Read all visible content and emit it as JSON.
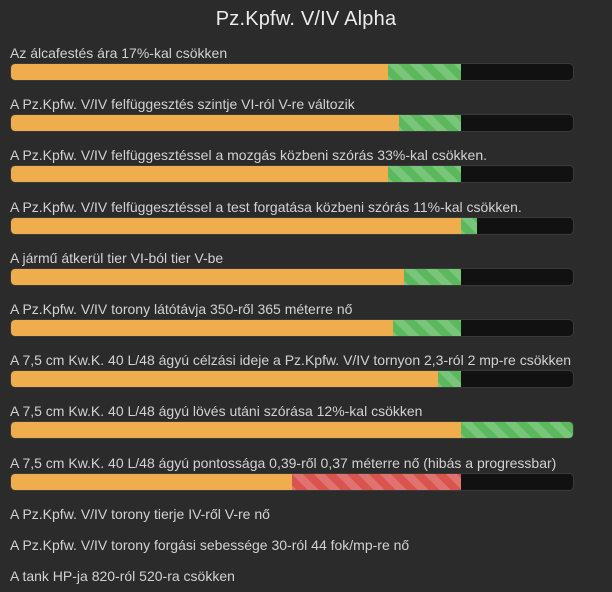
{
  "title": "Pz.Kpfw. V/IV Alpha",
  "colors": {
    "background": "#2b2b2b",
    "base": "#f0ad4e",
    "increase": "#5cb85c",
    "decrease": "#d9534f",
    "track": "#111111"
  },
  "rows": [
    {
      "label": "Az álcafestés ára 17%-kal csökken",
      "base": 0.67,
      "change": 0.13,
      "kind": "inc"
    },
    {
      "label": "A Pz.Kpfw. V/IV felfüggesztés szintje VI-ról V-re változik",
      "base": 0.69,
      "change": 0.11,
      "kind": "inc"
    },
    {
      "label": "A Pz.Kpfw. V/IV felfüggesztéssel a mozgás közbeni szórás 33%-kal csökken.",
      "base": 0.67,
      "change": 0.13,
      "kind": "inc"
    },
    {
      "label": "A Pz.Kpfw. V/IV felfüggesztéssel a test forgatása közbeni szórás 11%-kal csökken.",
      "base": 0.8,
      "change": 0.03,
      "kind": "inc"
    },
    {
      "label": "A jármű átkerül tier VI-ból tier V-be",
      "base": 0.7,
      "change": 0.1,
      "kind": "inc"
    },
    {
      "label": "A Pz.Kpfw. V/IV torony látótávja 350-ről 365 méterre nő",
      "base": 0.68,
      "change": 0.12,
      "kind": "inc"
    },
    {
      "label": "A 7,5 cm Kw.K. 40 L/48 ágyú célzási ideje a Pz.Kpfw. V/IV tornyon 2,3-ról 2 mp-re csökken",
      "base": 0.76,
      "change": 0.04,
      "kind": "inc"
    },
    {
      "label": "A 7,5 cm Kw.K. 40 L/48 ágyú lövés utáni szórása 12%-kal csökken",
      "base": 0.8,
      "change": 0.2,
      "kind": "inc"
    },
    {
      "label": "A 7,5 cm Kw.K. 40 L/48 ágyú pontossága 0,39-ről 0,37 méterre nő (hibás a progressbar)",
      "base": 0.5,
      "change": 0.3,
      "kind": "dec"
    }
  ],
  "plain_items": [
    "A Pz.Kpfw. V/IV torony tierje IV-ről V-re nő",
    "A Pz.Kpfw. V/IV torony forgási sebessége 30-ról 44 fok/mp-re nő",
    "A tank HP-ja 820-ról 520-ra csökken"
  ]
}
